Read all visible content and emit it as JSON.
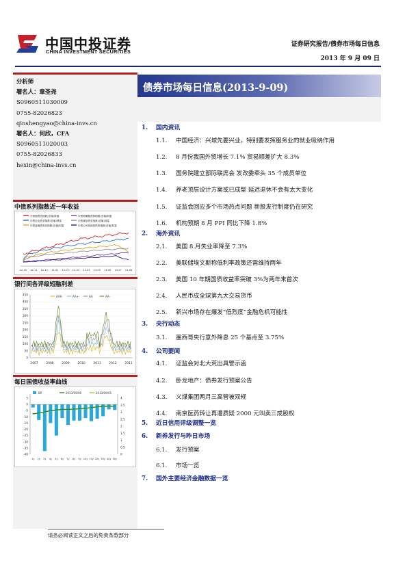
{
  "header": {
    "logo_cn": "中国中投证券",
    "logo_en": "CHINA INVESTMENT SECURITIES",
    "report_type": "证券研究报告/债券市场每日信息",
    "date": "2013 年 9 月 09 日",
    "colors": {
      "logo_red": "#c8202a",
      "logo_blue": "#1f3f9a",
      "rule": "#1a2a7a"
    }
  },
  "sidebar": {
    "analyst_heading": "分析师",
    "analysts": [
      {
        "label": "署名人：",
        "name": "章圣尧",
        "cert": "S0960511030009",
        "phone": "0755-82026823",
        "email": "qinshengyao@china-invs.cn"
      },
      {
        "label": "署名人：",
        "name": "何欣，CFA",
        "cert": "S0960511020003",
        "phone": "0755-82026833",
        "email": "hexin@china-invs.cn"
      }
    ],
    "chart1": {
      "title": "中债系列指数近一年收益",
      "legend": [
        "中债国债总指数(总值)财富",
        "中债企业债总指数(总值)财富",
        "中债金融债券总指数(总值)财富",
        "中债短期融资券指数(总值)财富",
        "中债城投债总指数(总值)财富",
        "中债公司信用类债券指数(总值)财富"
      ],
      "x_ticks": [
        "12-10",
        "12-11",
        "12-12",
        "13-01",
        "13-02",
        "13-03",
        "13-04",
        "13-05",
        "13-06",
        "13-07",
        "13-08"
      ],
      "colors": [
        "#d42020",
        "#2a6fd0",
        "#e0a020",
        "#7a3aa0",
        "#909090",
        "#1a1a8a"
      ]
    },
    "chart2": {
      "title": "银行间各评级短融利差",
      "legend": [
        "AAA",
        "AA+",
        "AA",
        "AA-"
      ],
      "y_ticks": [
        "450",
        "400",
        "350",
        "300",
        "250",
        "200",
        "150",
        "100",
        "50",
        "0"
      ],
      "x_ticks": [
        "2007",
        "2008",
        "2009",
        "2010",
        "2011",
        "2012",
        "2013"
      ],
      "colors": [
        "#e8b830",
        "#8abede",
        "#9a9a9a",
        "#6a8a3a"
      ]
    },
    "chart3": {
      "title": "每日国债收益率曲线",
      "legend": [
        "BP",
        "2013/09/06",
        "2013/09/05"
      ],
      "y_left_ticks": [
        "5",
        "0",
        "-5",
        "-10",
        "-15",
        "-20",
        "-25",
        "-30",
        "-35",
        "-40"
      ],
      "y_right_ticks": [
        "4",
        "3.5",
        "3",
        "2.5",
        "2",
        "1.5",
        "1",
        "0.5",
        "0"
      ],
      "x_ticks": [
        "1y",
        "2y",
        "3y",
        "4y",
        "5y",
        "6y",
        "7y",
        "8y",
        "9y",
        "10y",
        "15y",
        "20y",
        "30y",
        "40y",
        "50y"
      ],
      "colors": {
        "bars": "#29a8e0",
        "line_a": "#2a8a3a",
        "line_b": "#90d040"
      }
    }
  },
  "main": {
    "title": "债券市场每日信息(2013-9-09)",
    "toc": [
      {
        "num": "1.",
        "title": "国内资讯",
        "items": [
          {
            "num": "1.1.",
            "text": "中国经济：兴城先要兴业，特别要发挥服务业的就业吸纳作用"
          },
          {
            "num": "1.2.",
            "text": "8 月份我国外贸增长 7.1% 贸易顺差扩大 8.3%"
          },
          {
            "num": "1.3.",
            "text": "国务院建立部际联席会 发改委牵头 35 个成员单位"
          },
          {
            "num": "1.4.",
            "text": "养老顶层设计方案或已成型 延迟退休不会有太大变化"
          },
          {
            "num": "1.5.",
            "text": "证监会回应多个市场热点问题 新股发行制度仍在研究"
          },
          {
            "num": "1.6.",
            "text": "机构预期 8 月 PPI 同比下降 1.8%"
          }
        ]
      },
      {
        "num": "2.",
        "title": "海外资讯",
        "items": [
          {
            "num": "2.1.",
            "text": "美国 8 月失业率降至 7.3%"
          },
          {
            "num": "2.2.",
            "text": "美联储埃文斯称低利率政策还需维持两年"
          },
          {
            "num": "2.3.",
            "text": "美国 10 年期国债收益率突破 3%为两年来首次"
          },
          {
            "num": "2.4.",
            "text": "人民币成全球第九大交易货币"
          },
          {
            "num": "2.5.",
            "text": "新兴市场存在爆发“低烈度”金融危机可能性"
          }
        ]
      },
      {
        "num": "3.",
        "title": "央行动态",
        "items": [
          {
            "num": "3.1.",
            "text": "墨西哥央行意外降息 25 个基点至 3.75%"
          }
        ]
      },
      {
        "num": "4.",
        "title": "公司要闻",
        "items": [
          {
            "num": "4.1.",
            "text": "证监会对北大荒出具警示函"
          },
          {
            "num": "4.2.",
            "text": "卧龙地产：债券发行预案公告"
          },
          {
            "num": "4.3.",
            "text": "义煤集团两月三高管被双规"
          },
          {
            "num": "4.4.",
            "text": "南京医药转让再遭质疑 2000 元叫卖三成股权"
          }
        ]
      },
      {
        "num": "5.",
        "title": "近日信用评级调整一览",
        "items": []
      },
      {
        "num": "6.",
        "title": "新券发行与昨日市场",
        "items": [
          {
            "num": "6.1.",
            "text": "发行预案"
          },
          {
            "num": "6.1.",
            "text": "市场一览"
          }
        ]
      },
      {
        "num": "7.",
        "title": "国外主要经济金融数据一览",
        "items": []
      }
    ]
  },
  "footer": {
    "disclaimer": "请务必阅读正文之后的免责条款部分"
  }
}
